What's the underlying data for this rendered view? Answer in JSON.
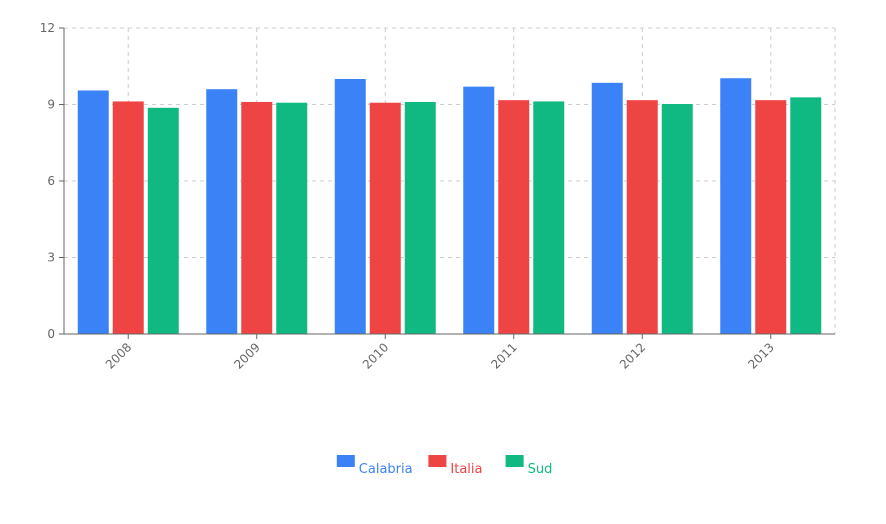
{
  "chart_data": {
    "type": "bar",
    "categories": [
      "2008",
      "2009",
      "2010",
      "2011",
      "2012",
      "2013"
    ],
    "series": [
      {
        "name": "Calabria",
        "color": "#3b82f6",
        "values": [
          9.55,
          9.6,
          10.0,
          9.7,
          9.85,
          10.03
        ]
      },
      {
        "name": "Italia",
        "color": "#ef4444",
        "values": [
          9.12,
          9.1,
          9.07,
          9.17,
          9.17,
          9.17
        ]
      },
      {
        "name": "Sud",
        "color": "#10b981",
        "values": [
          8.87,
          9.07,
          9.1,
          9.12,
          9.02,
          9.28
        ]
      }
    ],
    "yticks": [
      "0",
      "3",
      "6",
      "9",
      "12"
    ],
    "ylim": [
      0,
      12
    ],
    "grid": true,
    "legend_position": "bottom-center"
  }
}
